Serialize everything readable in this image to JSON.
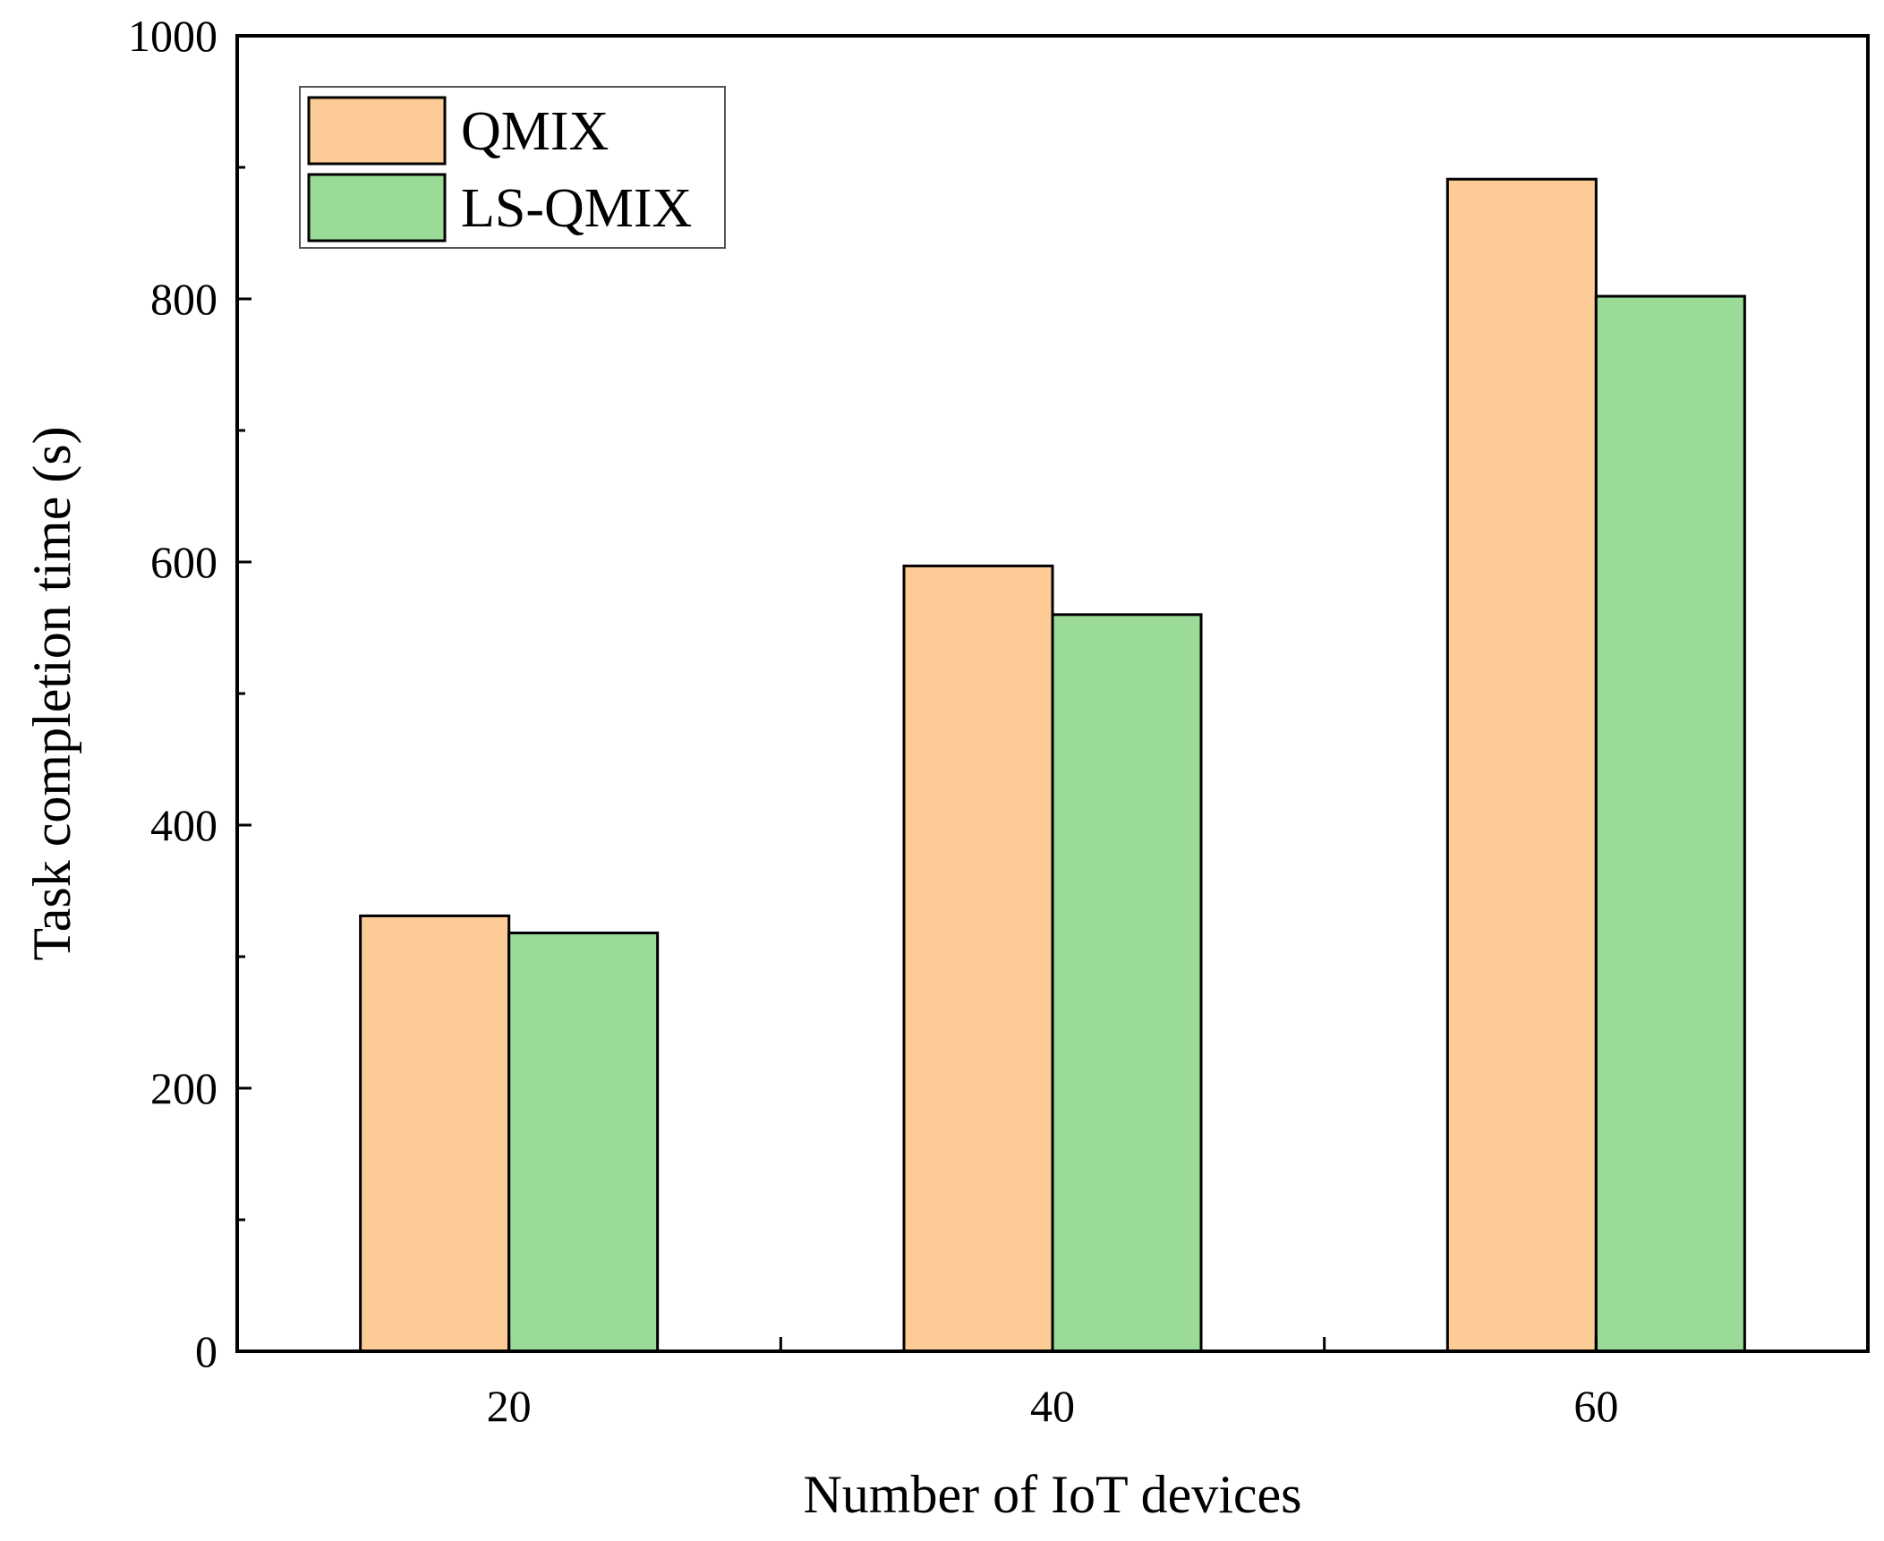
{
  "chart_data": {
    "type": "bar",
    "categories": [
      "20",
      "40",
      "60"
    ],
    "series": [
      {
        "name": "QMIX",
        "values": [
          331,
          597,
          891
        ],
        "color": "#FDCB95"
      },
      {
        "name": "LS-QMIX",
        "values": [
          318,
          560,
          802
        ],
        "color": "#9ADB98"
      }
    ],
    "xlabel": "Number of IoT devices",
    "ylabel": "Task completion time (s)",
    "ylim": [
      0,
      1000
    ],
    "yticks": [
      0,
      200,
      400,
      600,
      800,
      1000
    ],
    "ytick_labels": [
      "0",
      "200",
      "400",
      "600",
      "800",
      "1000"
    ],
    "grid": false,
    "legend_position": "top-left"
  }
}
